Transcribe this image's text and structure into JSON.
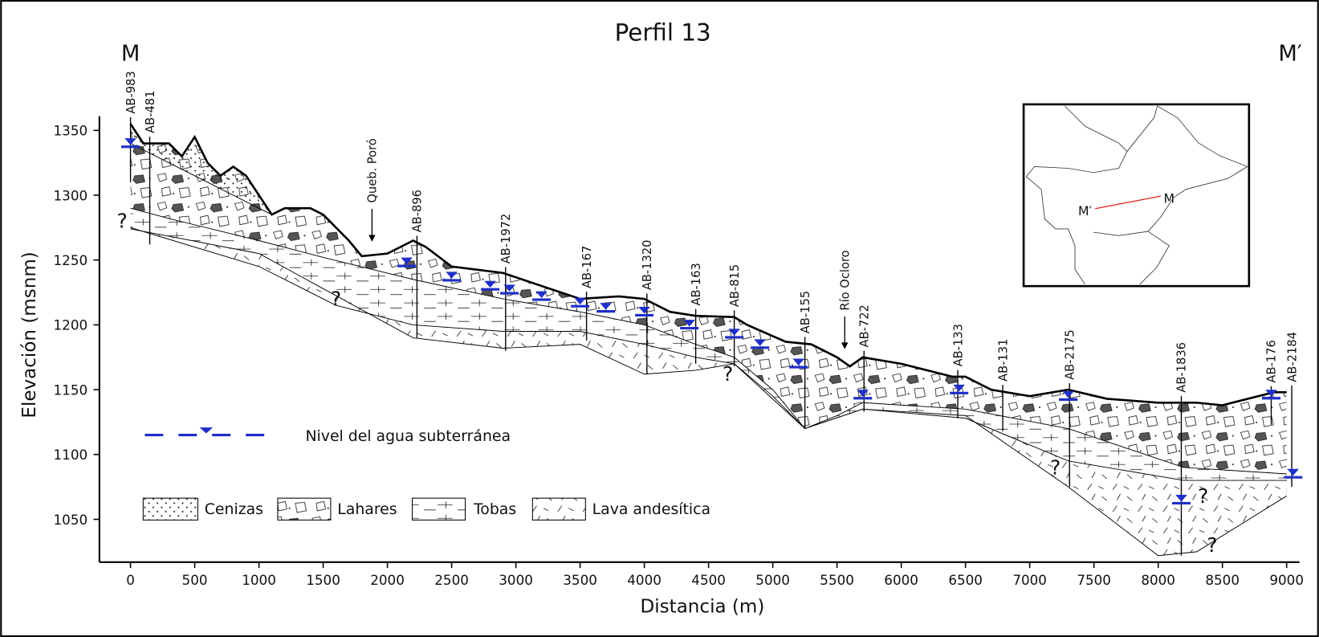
{
  "chart_data": {
    "type": "cross-section",
    "title": "Perfil 13",
    "corner_labels": [
      "M",
      "M′"
    ],
    "x_label": "Distancia (m)",
    "y_label": "Elevación (msnm)",
    "xlim": [
      -242,
      9100
    ],
    "ylim": [
      1017,
      1361
    ],
    "xticks": [
      0,
      500,
      1000,
      1500,
      2000,
      2500,
      3000,
      3500,
      4000,
      4500,
      5000,
      5500,
      6000,
      6500,
      7000,
      7500,
      8000,
      8500,
      9000
    ],
    "yticks": [
      1050,
      1100,
      1150,
      1200,
      1250,
      1300,
      1350
    ],
    "surface": {
      "x": [
        0,
        100,
        300,
        400,
        500,
        600,
        700,
        800,
        900,
        1000,
        1100,
        1200,
        1400,
        1500,
        1700,
        1800,
        2000,
        2200,
        2300,
        2500,
        2900,
        3200,
        3500,
        3800,
        4000,
        4200,
        4400,
        4700,
        4800,
        5100,
        5300,
        5500,
        5600,
        5700,
        6000,
        6400,
        6500,
        6700,
        7000,
        7300,
        7600,
        8000,
        8300,
        8500,
        8900,
        9000
      ],
      "values": [
        1355,
        1340,
        1340,
        1330,
        1345,
        1325,
        1315,
        1322,
        1315,
        1300,
        1285,
        1290,
        1290,
        1285,
        1265,
        1253,
        1255,
        1265,
        1260,
        1245,
        1240,
        1230,
        1220,
        1222,
        1220,
        1210,
        1207,
        1206,
        1200,
        1187,
        1185,
        1175,
        1168,
        1175,
        1170,
        1160,
        1160,
        1150,
        1145,
        1150,
        1143,
        1140,
        1140,
        1138,
        1148,
        1148
      ]
    },
    "ash_base": {
      "x": [
        0,
        400,
        800,
        1100
      ],
      "values": [
        1340,
        1320,
        1300,
        1285
      ]
    },
    "lahar_base": {
      "x": [
        0,
        300,
        1000,
        1500,
        2200,
        2900,
        3500,
        4000,
        4400,
        4700,
        5000,
        5250,
        5500,
        5700,
        6500,
        7300,
        8200,
        9000
      ],
      "values": [
        1290,
        1282,
        1265,
        1252,
        1235,
        1220,
        1210,
        1200,
        1185,
        1175,
        1150,
        1120,
        1130,
        1140,
        1135,
        1120,
        1090,
        1085
      ]
    },
    "lava_top": {
      "x": [
        0,
        1000,
        1600,
        2200,
        2900,
        3500,
        4000,
        4400,
        4700,
        5000,
        5250,
        5700,
        6500,
        7300,
        8200,
        9000
      ],
      "values": [
        1275,
        1245,
        1215,
        1200,
        1195,
        1195,
        1185,
        1175,
        1170,
        1145,
        1120,
        1135,
        1128,
        1095,
        1080,
        1080
      ]
    },
    "section_base": {
      "x": [
        0,
        1000,
        2200,
        2900,
        3500,
        4000,
        4400,
        4700,
        5250,
        5700,
        6500,
        7300,
        8000,
        8300,
        9000
      ],
      "values": [
        1274,
        1255,
        1190,
        1182,
        1185,
        1162,
        1165,
        1170,
        1120,
        1135,
        1130,
        1075,
        1022,
        1025,
        1068
      ]
    },
    "legend": [
      "Cenizas",
      "Lahares",
      "Tobas",
      "Lava andesítica"
    ],
    "water": {
      "name": "Nivel del agua subterránea",
      "x": [
        0,
        2150,
        2500,
        2800,
        2950,
        3200,
        3500,
        3700,
        4000,
        4350,
        4700,
        4900,
        5200,
        5700,
        6450,
        7300,
        8180,
        8880,
        9050
      ],
      "values": [
        1340,
        1248,
        1237,
        1230,
        1227,
        1222,
        1217,
        1213,
        1210,
        1200,
        1193,
        1185,
        1170,
        1146,
        1150,
        1145,
        1065,
        1146,
        1085
      ]
    },
    "wells": [
      {
        "label": "AB-983",
        "x": 0,
        "bottom": 1310
      },
      {
        "label": "AB-481",
        "x": 150,
        "bottom": 1262
      },
      {
        "label": "AB-896",
        "x": 2230,
        "bottom": 1190
      },
      {
        "label": "AB-1972",
        "x": 2920,
        "bottom": 1180
      },
      {
        "label": "AB-167",
        "x": 3550,
        "bottom": 1188
      },
      {
        "label": "AB-1320",
        "x": 4020,
        "bottom": 1162
      },
      {
        "label": "AB-163",
        "x": 4400,
        "bottom": 1170
      },
      {
        "label": "AB-815",
        "x": 4700,
        "bottom": 1168
      },
      {
        "label": "AB-155",
        "x": 5250,
        "bottom": 1120
      },
      {
        "label": "AB-722",
        "x": 5710,
        "bottom": 1133
      },
      {
        "label": "AB-133",
        "x": 6440,
        "bottom": 1128
      },
      {
        "label": "AB-131",
        "x": 6790,
        "bottom": 1118
      },
      {
        "label": "AB-2175",
        "x": 7310,
        "bottom": 1075
      },
      {
        "label": "AB-1836",
        "x": 8180,
        "bottom": 1022
      },
      {
        "label": "AB-176",
        "x": 8880,
        "bottom": 1123
      },
      {
        "label": "AB-2184",
        "x": 9040,
        "bottom": 1075
      }
    ],
    "streams": [
      {
        "label": "Queb. Poró",
        "x": 1880
      },
      {
        "label": "Río Ocloro",
        "x": 5560
      }
    ],
    "question_marks": [
      {
        "label": "?",
        "x": -65,
        "y": 1280
      },
      {
        "label": "?",
        "x": 1600,
        "y": 1220
      },
      {
        "label": "?",
        "x": 4650,
        "y": 1162
      },
      {
        "label": "?",
        "x": 7200,
        "y": 1090
      },
      {
        "label": "?",
        "x": 8350,
        "y": 1068
      },
      {
        "label": "?",
        "x": 8420,
        "y": 1030
      }
    ],
    "inset": {
      "labels": [
        "M′",
        "M"
      ]
    }
  }
}
